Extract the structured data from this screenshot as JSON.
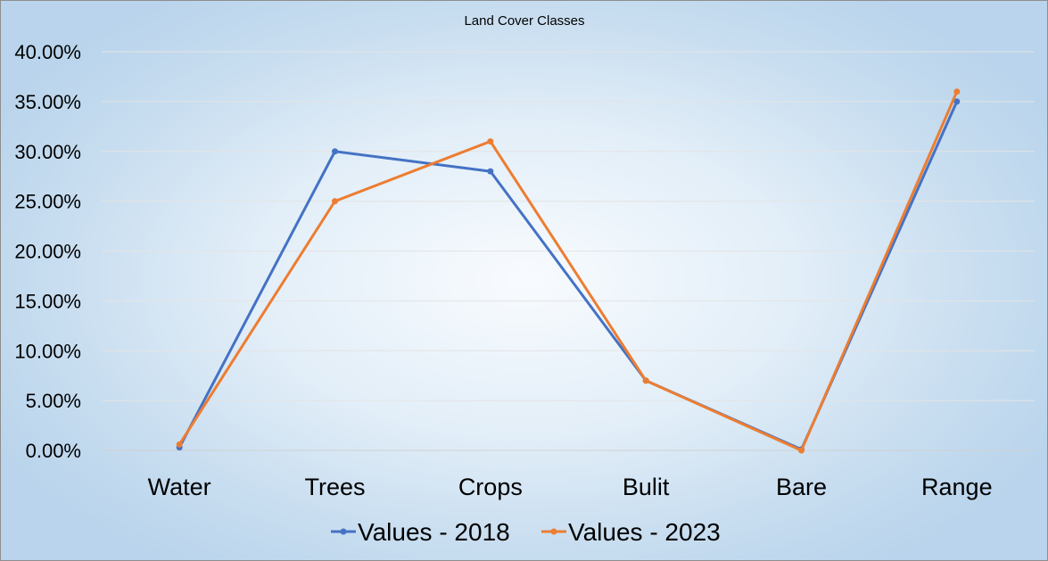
{
  "chart_data": {
    "type": "line",
    "title": "Land Cover Classes",
    "xlabel": "",
    "ylabel": "",
    "categories": [
      "Water",
      "Trees",
      "Crops",
      "Bulit",
      "Bare",
      "Range"
    ],
    "ylim": [
      0,
      0.4
    ],
    "yticks": [
      "0.00%",
      "5.00%",
      "10.00%",
      "15.00%",
      "20.00%",
      "25.00%",
      "30.00%",
      "35.00%",
      "40.00%"
    ],
    "grid": true,
    "legend_position": "bottom",
    "series": [
      {
        "name": "Values - 2018",
        "color": "#4472c4",
        "values": [
          0.003,
          0.3,
          0.28,
          0.07,
          0.001,
          0.35
        ]
      },
      {
        "name": "Values - 2023",
        "color": "#ed7d31",
        "values": [
          0.006,
          0.25,
          0.31,
          0.07,
          0.0,
          0.36
        ]
      }
    ]
  }
}
